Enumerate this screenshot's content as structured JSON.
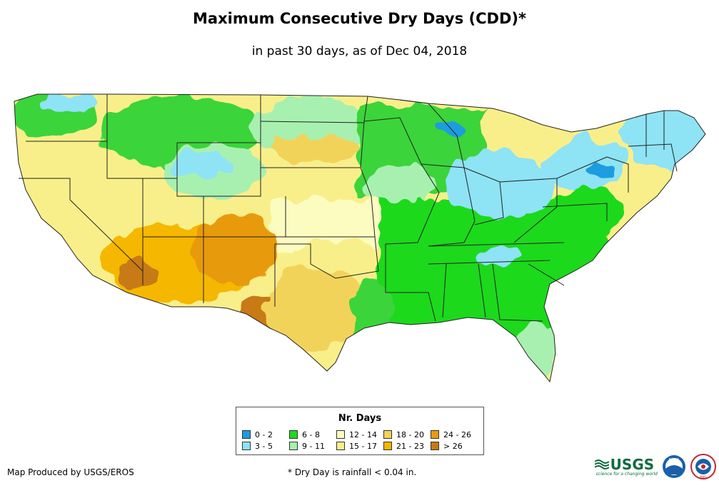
{
  "title": "Maximum Consecutive Dry Days (CDD)*",
  "subtitle": "in past 30 days, as of Dec 04, 2018",
  "legend": {
    "title": "Nr. Days",
    "items": [
      {
        "label": "0 - 2",
        "color": "#1a9de0"
      },
      {
        "label": "6 - 8",
        "color": "#1ed91e"
      },
      {
        "label": "12 - 14",
        "color": "#fcfcc0"
      },
      {
        "label": "18 - 20",
        "color": "#f2d35a"
      },
      {
        "label": "24 - 26",
        "color": "#e89a10"
      },
      {
        "label": "3 - 5",
        "color": "#8ee3f5"
      },
      {
        "label": "9 - 11",
        "color": "#a8f0b0"
      },
      {
        "label": "15 - 17",
        "color": "#f9ef8a"
      },
      {
        "label": "21 - 23",
        "color": "#f5b700"
      },
      {
        "label": "> 26",
        "color": "#c77a12"
      }
    ]
  },
  "footer": {
    "credit": "Map Produced by USGS/EROS",
    "footnote": "* Dry Day is rainfall < 0.04 in."
  },
  "logos": {
    "usgs": "USGS",
    "usgs_tagline": "science for a changing world",
    "noaa": "NOAA",
    "nws": "NWS"
  }
}
